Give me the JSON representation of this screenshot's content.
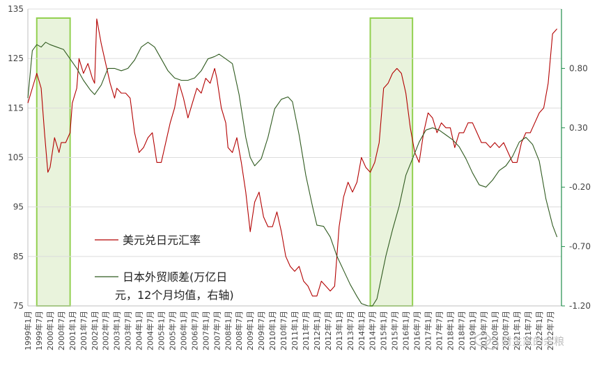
{
  "chart_data": {
    "type": "line",
    "colors": {
      "usd_jpy": "#b30000",
      "trade_balance": "#2f5a1f",
      "highlight_fill": "#e9f3dc",
      "highlight_stroke": "#92d050",
      "right_axis": "#1e8c4a",
      "grid": "#dcdcdc"
    },
    "left_axis": {
      "ylim": [
        75,
        135
      ],
      "ticks": [
        "135",
        "125",
        "115",
        "105",
        "95",
        "85",
        "75"
      ]
    },
    "right_axis": {
      "ylim": [
        -1.2,
        1.3
      ],
      "ticks": [
        "0.80",
        "0.30",
        "-0.20",
        "-0.70",
        "-1.20"
      ]
    },
    "x_range": [
      1999.0,
      2023.0
    ],
    "x_tick_labels": [
      "1999年1月",
      "1999年7月",
      "2000年1月",
      "2000年7月",
      "2001年1月",
      "2001年7月",
      "2002年1月",
      "2002年7月",
      "2003年1月",
      "2003年7月",
      "2004年1月",
      "2004年7月",
      "2005年1月",
      "2005年7月",
      "2006年1月",
      "2006年7月",
      "2007年1月",
      "2007年7月",
      "2008年1月",
      "2008年7月",
      "2009年1月",
      "2009年7月",
      "2010年1月",
      "2010年7月",
      "2011年1月",
      "2011年7月",
      "2012年1月",
      "2012年7月",
      "2013年1月",
      "2013年7月",
      "2014年1月",
      "2014年7月",
      "2015年1月",
      "2015年7月",
      "2016年1月",
      "2016年7月",
      "2017年1月",
      "2017年7月",
      "2018年1月",
      "2018年7月",
      "2019年1月",
      "2019年7月",
      "2020年1月",
      "2020年7月",
      "2021年1月",
      "2021年7月",
      "2022年1月",
      "2022年7月"
    ],
    "highlight_periods": [
      [
        1999.4,
        2000.9
      ],
      [
        2014.4,
        2016.3
      ]
    ],
    "series": [
      {
        "name": "美元兑日元汇率",
        "axis": "left",
        "x": [
          1999.0,
          1999.2,
          1999.4,
          1999.6,
          1999.75,
          1999.9,
          2000.0,
          2000.2,
          2000.4,
          2000.5,
          2000.7,
          2000.9,
          2001.0,
          2001.2,
          2001.3,
          2001.5,
          2001.7,
          2001.9,
          2002.0,
          2002.1,
          2002.3,
          2002.5,
          2002.7,
          2002.9,
          2003.0,
          2003.2,
          2003.4,
          2003.6,
          2003.8,
          2004.0,
          2004.2,
          2004.4,
          2004.6,
          2004.8,
          2005.0,
          2005.2,
          2005.4,
          2005.6,
          2005.8,
          2006.0,
          2006.2,
          2006.4,
          2006.6,
          2006.8,
          2007.0,
          2007.2,
          2007.4,
          2007.5,
          2007.7,
          2007.9,
          2008.0,
          2008.2,
          2008.4,
          2008.6,
          2008.8,
          2009.0,
          2009.2,
          2009.4,
          2009.6,
          2009.8,
          2010.0,
          2010.2,
          2010.4,
          2010.6,
          2010.8,
          2011.0,
          2011.2,
          2011.4,
          2011.6,
          2011.8,
          2012.0,
          2012.2,
          2012.4,
          2012.6,
          2012.8,
          2013.0,
          2013.2,
          2013.4,
          2013.6,
          2013.8,
          2014.0,
          2014.2,
          2014.4,
          2014.6,
          2014.8,
          2015.0,
          2015.2,
          2015.4,
          2015.6,
          2015.8,
          2016.0,
          2016.2,
          2016.4,
          2016.6,
          2016.8,
          2017.0,
          2017.2,
          2017.4,
          2017.6,
          2017.8,
          2018.0,
          2018.2,
          2018.4,
          2018.6,
          2018.8,
          2019.0,
          2019.2,
          2019.4,
          2019.6,
          2019.8,
          2020.0,
          2020.2,
          2020.4,
          2020.6,
          2020.8,
          2021.0,
          2021.2,
          2021.4,
          2021.6,
          2021.8,
          2022.0,
          2022.2,
          2022.4,
          2022.6,
          2022.8
        ],
        "values": [
          116,
          119,
          122,
          119,
          110,
          102,
          103,
          109,
          106,
          108,
          108,
          110,
          116,
          119,
          125,
          122,
          124,
          121,
          120,
          133,
          128,
          124,
          120,
          117,
          119,
          118,
          118,
          117,
          110,
          106,
          107,
          109,
          110,
          104,
          104,
          108,
          112,
          115,
          120,
          117,
          113,
          116,
          119,
          118,
          121,
          120,
          123,
          121,
          115,
          112,
          107,
          106,
          109,
          104,
          98,
          90,
          96,
          98,
          93,
          91,
          91,
          94,
          90,
          85,
          83,
          82,
          83,
          80,
          79,
          77,
          77,
          80,
          79,
          78,
          79,
          91,
          97,
          100,
          98,
          100,
          105,
          103,
          102,
          104,
          108,
          119,
          120,
          122,
          123,
          122,
          118,
          111,
          106,
          104,
          110,
          114,
          113,
          110,
          112,
          111,
          111,
          107,
          110,
          110,
          112,
          112,
          110,
          108,
          108,
          107,
          108,
          107,
          108,
          106,
          104,
          104,
          108,
          110,
          110,
          112,
          114,
          115,
          120,
          130,
          131
        ]
      },
      {
        "name": "日本外贸顺差(万亿日元，12个月均值，右轴)",
        "axis": "right",
        "x": [
          1999.0,
          1999.2,
          1999.4,
          1999.6,
          1999.8,
          2000.0,
          2000.3,
          2000.6,
          2000.9,
          2001.2,
          2001.5,
          2001.8,
          2002.0,
          2002.3,
          2002.6,
          2002.9,
          2003.2,
          2003.5,
          2003.8,
          2004.1,
          2004.4,
          2004.7,
          2005.0,
          2005.3,
          2005.6,
          2005.9,
          2006.2,
          2006.5,
          2006.8,
          2007.1,
          2007.4,
          2007.6,
          2007.9,
          2008.2,
          2008.5,
          2008.8,
          2009.0,
          2009.2,
          2009.5,
          2009.8,
          2010.1,
          2010.4,
          2010.7,
          2010.9,
          2011.2,
          2011.5,
          2011.8,
          2012.0,
          2012.3,
          2012.6,
          2012.9,
          2013.2,
          2013.5,
          2013.8,
          2014.0,
          2014.3,
          2014.5,
          2014.7,
          2014.9,
          2015.1,
          2015.4,
          2015.7,
          2016.0,
          2016.3,
          2016.6,
          2016.9,
          2017.2,
          2017.5,
          2017.8,
          2018.1,
          2018.4,
          2018.7,
          2019.0,
          2019.3,
          2019.6,
          2019.9,
          2020.2,
          2020.5,
          2020.8,
          2021.1,
          2021.4,
          2021.7,
          2022.0,
          2022.3,
          2022.6,
          2022.8
        ],
        "values": [
          0.55,
          0.95,
          1.0,
          0.98,
          1.02,
          1.0,
          0.98,
          0.96,
          0.88,
          0.8,
          0.7,
          0.62,
          0.58,
          0.66,
          0.8,
          0.8,
          0.78,
          0.8,
          0.87,
          0.98,
          1.02,
          0.98,
          0.88,
          0.78,
          0.72,
          0.7,
          0.7,
          0.72,
          0.78,
          0.88,
          0.9,
          0.92,
          0.88,
          0.84,
          0.58,
          0.22,
          0.05,
          -0.02,
          0.04,
          0.22,
          0.46,
          0.54,
          0.56,
          0.52,
          0.24,
          -0.1,
          -0.36,
          -0.52,
          -0.53,
          -0.62,
          -0.78,
          -0.9,
          -1.02,
          -1.12,
          -1.18,
          -1.2,
          -1.2,
          -1.14,
          -0.96,
          -0.78,
          -0.56,
          -0.36,
          -0.1,
          0.04,
          0.18,
          0.28,
          0.3,
          0.28,
          0.24,
          0.2,
          0.14,
          0.04,
          -0.08,
          -0.18,
          -0.2,
          -0.14,
          -0.06,
          -0.02,
          0.06,
          0.18,
          0.22,
          0.16,
          0.02,
          -0.3,
          -0.52,
          -0.62
        ]
      }
    ],
    "legend": {
      "usd_jpy_label": "美元兑日元汇率",
      "trade_line1": "日本外贸顺差(万亿日",
      "trade_line2": "元，12个月均值，右轴)"
    }
  },
  "watermark": {
    "icon": "chat-bubble-icon",
    "text": "财主家的余粮"
  }
}
